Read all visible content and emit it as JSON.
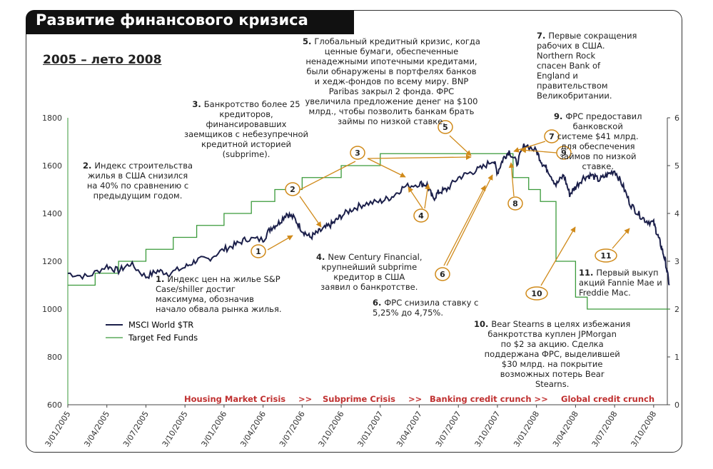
{
  "header": {
    "title": "Развитие финансового кризиса",
    "subtitle": "2005 – лето 2008"
  },
  "colors": {
    "msci_line": "#1b1f4a",
    "fed_line": "#3a9a3a",
    "callout": "#d08a1a",
    "phase_text": "#c03030"
  },
  "legend": {
    "items": [
      {
        "label": "MSCI World $TR",
        "color": "#1b1f4a"
      },
      {
        "label": "Target Fed Funds",
        "color": "#3a9a3a"
      }
    ],
    "placement": "bottom-left"
  },
  "annotations": [
    {
      "num": "1",
      "lines": [
        "Индекс цен на жилье S&P",
        "Case/shiller достиг",
        "максимума, обозначив",
        "начало обвала рынка жилья."
      ]
    },
    {
      "num": "2",
      "lines": [
        "Индекс строительства",
        "жилья в США снизился",
        "на 40% по сравнению с",
        "предыдущим годом."
      ]
    },
    {
      "num": "3",
      "lines": [
        "Банкротство более 25",
        "кредиторов,",
        "финансировавших",
        "заемщиков с небезупречной",
        "кредитной историей",
        "(subprime)."
      ]
    },
    {
      "num": "4",
      "lines": [
        "New Century Financial,",
        "крупнейший subprime",
        "кредитор в США",
        "заявил о банкротстве."
      ]
    },
    {
      "num": "5",
      "lines": [
        "Глобальный кредитный кризис, когда",
        "ценные бумаги, обеспеченные",
        "ненадежными ипотечными кредитами,",
        "были обнаружены в портфелях банков",
        "и хедж-фондов по всему миру. BNP",
        "Paribas закрыл 2 фонда. ФРС",
        "увеличила предложение денег на $100",
        "млрд., чтобы позволить банкам брать",
        "займы по низкой ставке."
      ]
    },
    {
      "num": "6",
      "lines": [
        "ФРС снизила ставку с",
        "5,25% до 4,75%."
      ]
    },
    {
      "num": "7",
      "lines": [
        "Первые сокращения",
        "рабочих в США.",
        "Northern Rock",
        "спасен Bank of",
        "England и",
        "правительством",
        "Великобритании."
      ]
    },
    {
      "num": "9",
      "lines": [
        "ФРС предоставил",
        "банковской",
        "системе $41 млрд.",
        "для обеспечения",
        "займов по низкой",
        "ставке."
      ]
    },
    {
      "num": "10",
      "lines": [
        "Bear Stearns в целях избежания",
        "банкротства куплен JPMorgan",
        "по $2 за акцию. Сделка",
        "поддержана ФРС, выделившей",
        "$30 млрд. на покрытие",
        "возможных потерь Bear",
        "Stearns."
      ]
    },
    {
      "num": "11",
      "lines": [
        "Первый выкуп",
        "акций Fannie Mae и",
        "Freddie Mac."
      ]
    }
  ],
  "phases": [
    "Housing Market Crisis",
    ">>",
    "Subprime Crisis",
    ">>",
    "Banking credit crunch >>",
    "Global credit crunch"
  ],
  "chart_data": {
    "type": "line",
    "x_tick_labels": [
      "3/01/2005",
      "3/04/2005",
      "3/07/2005",
      "3/10/2005",
      "3/01/2006",
      "3/04/2006",
      "3/07/2006",
      "3/10/2006",
      "3/01/2007",
      "3/04/2007",
      "3/07/2007",
      "3/10/2007",
      "3/01/2008",
      "3/04/2008",
      "3/07/2008",
      "3/10/2008"
    ],
    "y_left": {
      "min": 600,
      "max": 1800,
      "ticks": [
        600,
        800,
        1000,
        1200,
        1400,
        1600,
        1800
      ]
    },
    "y_right": {
      "min": 0,
      "max": 6,
      "ticks": [
        0,
        1,
        2,
        3,
        4,
        5,
        6
      ]
    },
    "grid": false,
    "series": [
      {
        "name": "MSCI World $TR",
        "axis": "left",
        "x_index": [
          0,
          0.5,
          1,
          1.3,
          1.6,
          2,
          2.3,
          2.6,
          3,
          3.3,
          3.6,
          4,
          4.3,
          4.6,
          5,
          5.2,
          5.4,
          5.6,
          5.8,
          6,
          6.2,
          6.4,
          6.6,
          6.8,
          7,
          7.3,
          7.6,
          8,
          8.3,
          8.6,
          9,
          9.2,
          9.35,
          9.5,
          9.7,
          10,
          10.3,
          10.6,
          10.9,
          11,
          11.15,
          11.3,
          11.5,
          11.7,
          12,
          12.15,
          12.3,
          12.5,
          12.7,
          12.85,
          13,
          13.2,
          13.4,
          13.6,
          13.8,
          14,
          14.2,
          14.4,
          14.6,
          14.8,
          15,
          15.1,
          15.2,
          15.3,
          15.4
        ],
        "values": [
          1150,
          1135,
          1180,
          1160,
          1190,
          1135,
          1160,
          1150,
          1175,
          1205,
          1210,
          1250,
          1270,
          1295,
          1290,
          1340,
          1360,
          1400,
          1380,
          1330,
          1300,
          1320,
          1340,
          1360,
          1390,
          1420,
          1440,
          1450,
          1470,
          1510,
          1525,
          1520,
          1460,
          1490,
          1500,
          1550,
          1570,
          1590,
          1625,
          1570,
          1630,
          1660,
          1610,
          1690,
          1660,
          1610,
          1580,
          1520,
          1560,
          1480,
          1510,
          1550,
          1560,
          1540,
          1560,
          1580,
          1520,
          1440,
          1400,
          1370,
          1360,
          1310,
          1260,
          1200,
          1100
        ]
      },
      {
        "name": "Target Fed Funds",
        "axis": "right",
        "x_index": [
          0,
          0.7,
          1.3,
          2,
          2.7,
          3.3,
          4,
          4.7,
          5.3,
          6,
          7,
          8,
          9,
          10,
          11,
          11.3,
          11.4,
          11.7,
          11.8,
          12,
          12.1,
          12.4,
          12.5,
          12.9,
          13,
          13.2,
          13.3,
          13.6,
          13.7,
          15.4
        ],
        "values": [
          2.5,
          2.75,
          3.0,
          3.25,
          3.5,
          3.75,
          4.0,
          4.25,
          4.5,
          4.75,
          5.0,
          5.25,
          5.25,
          5.25,
          5.25,
          5.25,
          4.75,
          4.75,
          4.5,
          4.5,
          4.25,
          4.25,
          3.0,
          3.0,
          2.25,
          2.25,
          2.0,
          2.0,
          2.0,
          2.0
        ]
      }
    ],
    "markers": [
      "1",
      "2",
      "3",
      "4",
      "5",
      "6",
      "7",
      "8",
      "9",
      "10",
      "11"
    ]
  }
}
